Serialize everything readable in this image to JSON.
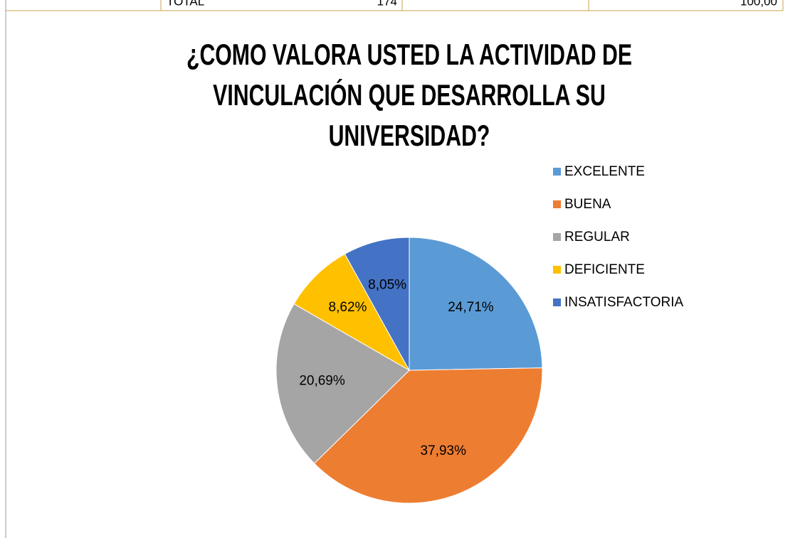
{
  "table": {
    "rows": [
      [
        "TOTAL",
        "174",
        "100,00"
      ]
    ]
  },
  "chart_data": {
    "type": "pie",
    "title": "¿COMO VALORA USTED LA ACTIVIDAD DE VINCULACIÓN QUE DESARROLLA SU UNIVERSIDAD?",
    "categories": [
      "EXCELENTE",
      "BUENA",
      "REGULAR",
      "DEFICIENTE",
      "INSATISFACTORIA"
    ],
    "values": [
      24.71,
      37.93,
      20.69,
      8.62,
      8.05
    ],
    "value_labels": [
      "24,71%",
      "37,93%",
      "20,69%",
      "8,62%",
      "8,05%"
    ],
    "colors": [
      "#5b9bd5",
      "#ed7d31",
      "#a5a5a5",
      "#ffc000",
      "#4472c4"
    ],
    "legend": "right"
  }
}
